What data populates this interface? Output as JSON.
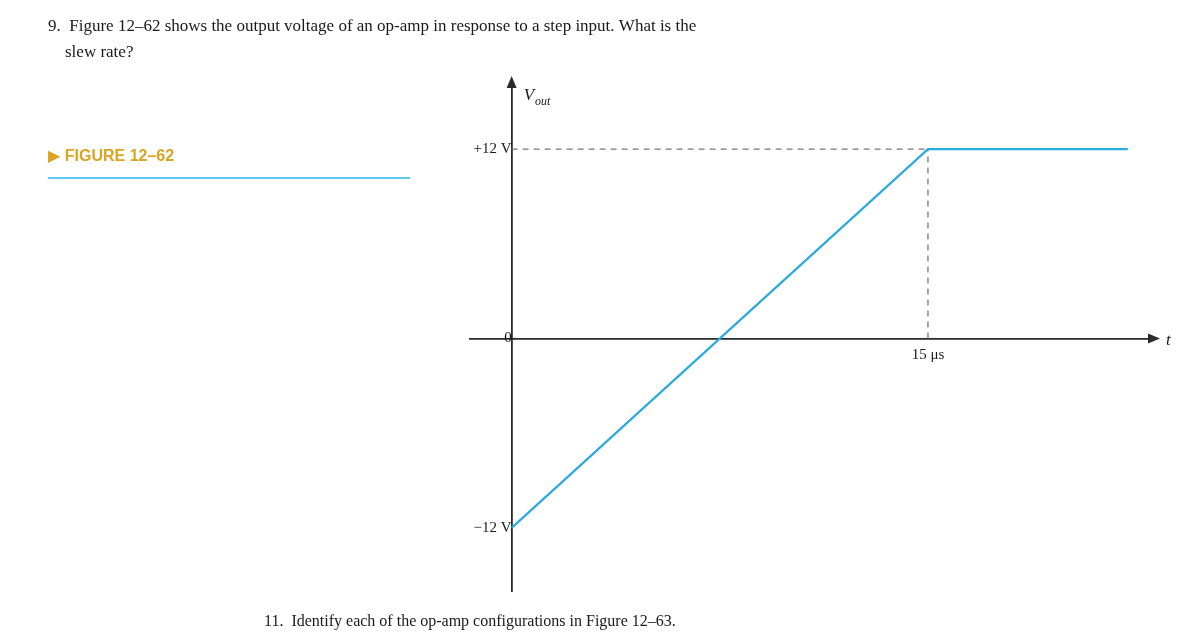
{
  "chart_data": {
    "type": "line",
    "title": [
      "9.  Figure 12–62 shows the output voltage of an op-amp in response to a step input. What is the",
      "    slew rate?"
    ],
    "annotations": [
      {
        "text": "▶ FIGURE 12–62",
        "color": "#DAA520",
        "underline_color": "#5BC8F5"
      },
      {
        "text": "11.  Identify each of the op-amp configurations in Figure 12–63."
      }
    ],
    "xlabel": "t",
    "ylabel": "V",
    "ylabel_sub": "out",
    "xlim": [
      -1.5,
      23
    ],
    "ylim": [
      -16,
      16
    ],
    "xticks": [
      {
        "value": 15,
        "label": "15 μs"
      }
    ],
    "yticks": [
      {
        "value": -12,
        "label": "−12 V"
      },
      0,
      {
        "value": 12,
        "label": "+12 V"
      }
    ],
    "grid": false,
    "axis_color": "#2a2a2a",
    "series": [
      {
        "color": "#29ABE2",
        "x": [
          0,
          15,
          22.2
        ],
        "values": [
          -12,
          12,
          12
        ],
        "line_style": "solid",
        "marker": "none"
      },
      {
        "color": "#777777",
        "x": [
          0,
          15
        ],
        "values": [
          12,
          12
        ],
        "line_style": "dashed",
        "marker": "none"
      },
      {
        "color": "#777777",
        "x": [
          15,
          15
        ],
        "values": [
          0,
          12
        ],
        "line_style": "dashed",
        "marker": "none"
      }
    ]
  }
}
